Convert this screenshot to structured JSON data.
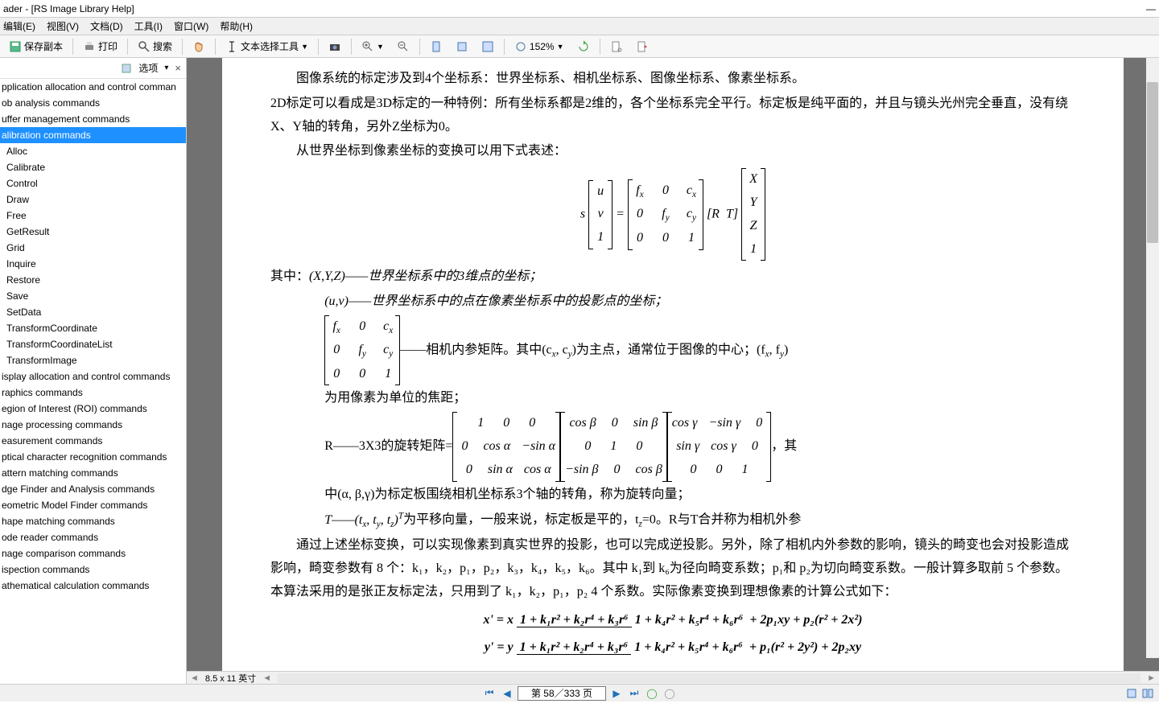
{
  "window": {
    "title": "ader - [RS Image Library Help]",
    "minimize": "—"
  },
  "menu": {
    "edit": "编辑(E)",
    "view": "视图(V)",
    "document": "文档(D)",
    "tools": "工具(I)",
    "window": "窗口(W)",
    "help": "帮助(H)"
  },
  "toolbar1": {
    "save": "保存副本",
    "print": "打印",
    "search": "搜索"
  },
  "toolbar2": {
    "textselect": "文本选择工具",
    "zoom": "152%"
  },
  "sidebar": {
    "options_label": "选项",
    "arrow": "▾",
    "close": "×",
    "items": [
      {
        "label": "pplication allocation and control comman",
        "sel": false,
        "child": false
      },
      {
        "label": "ob analysis commands",
        "sel": false,
        "child": false
      },
      {
        "label": "uffer management commands",
        "sel": false,
        "child": false
      },
      {
        "label": "alibration commands",
        "sel": true,
        "child": false
      },
      {
        "label": "Alloc",
        "sel": false,
        "child": true
      },
      {
        "label": "Calibrate",
        "sel": false,
        "child": true
      },
      {
        "label": "Control",
        "sel": false,
        "child": true
      },
      {
        "label": "Draw",
        "sel": false,
        "child": true
      },
      {
        "label": "Free",
        "sel": false,
        "child": true
      },
      {
        "label": "GetResult",
        "sel": false,
        "child": true
      },
      {
        "label": "Grid",
        "sel": false,
        "child": true
      },
      {
        "label": "Inquire",
        "sel": false,
        "child": true
      },
      {
        "label": "Restore",
        "sel": false,
        "child": true
      },
      {
        "label": "Save",
        "sel": false,
        "child": true
      },
      {
        "label": "SetData",
        "sel": false,
        "child": true
      },
      {
        "label": "TransformCoordinate",
        "sel": false,
        "child": true
      },
      {
        "label": "TransformCoordinateList",
        "sel": false,
        "child": true
      },
      {
        "label": "TransformImage",
        "sel": false,
        "child": true
      },
      {
        "label": "isplay allocation and control commands",
        "sel": false,
        "child": false
      },
      {
        "label": "raphics commands",
        "sel": false,
        "child": false
      },
      {
        "label": "egion of Interest (ROI) commands",
        "sel": false,
        "child": false
      },
      {
        "label": "nage processing commands",
        "sel": false,
        "child": false
      },
      {
        "label": "easurement commands",
        "sel": false,
        "child": false
      },
      {
        "label": "ptical character recognition commands",
        "sel": false,
        "child": false
      },
      {
        "label": "attern matching commands",
        "sel": false,
        "child": false
      },
      {
        "label": "dge Finder and Analysis commands",
        "sel": false,
        "child": false
      },
      {
        "label": "eometric Model Finder commands",
        "sel": false,
        "child": false
      },
      {
        "label": "hape matching commands",
        "sel": false,
        "child": false
      },
      {
        "label": "ode reader commands",
        "sel": false,
        "child": false
      },
      {
        "label": "nage comparison commands",
        "sel": false,
        "child": false
      },
      {
        "label": "ispection commands",
        "sel": false,
        "child": false
      },
      {
        "label": "athematical calculation commands",
        "sel": false,
        "child": false
      }
    ]
  },
  "doc": {
    "p1": "图像系统的标定涉及到4个坐标系：世界坐标系、相机坐标系、图像坐标系、像素坐标系。",
    "p2": "2D标定可以看成是3D标定的一种特例：所有坐标系都是2维的，各个坐标系完全平行。标定板是纯平面的，并且与镜头光州完全垂直，没有绕X、Y轴的转角，另外Z坐标为0。",
    "p3": "从世界坐标到像素坐标的变换可以用下式表述：",
    "where_label": "其中：",
    "xyz": "(X,Y,Z)——世界坐标系中的3维点的坐标；",
    "uv": "(u,v)——世界坐标系中的点在像素坐标系中的投影点的坐标；",
    "intrinsic_suffix": "——相机内参矩阵。其中(c",
    "intrinsic_suffix2": ", c",
    "intrinsic_suffix3": ")为主点，通常位于图像的中心；(f",
    "intrinsic_suffix4": ", f",
    "intrinsic_suffix5": ")",
    "focal": "为用像素为单位的焦距；",
    "r_prefix": "R——3X3的旋转矩阵=",
    "r_suffix": "，其",
    "r_suffix2_a": "中(α, β,γ)为标定板围绕相机坐标系3个轴的转角，称为旋转向量；",
    "t_line_a": "T——(t",
    "t_line_b": ", t",
    "t_line_c": ", t",
    "t_line_d": ")",
    "t_line_e": "为平移向量，一般来说，标定板是平的，t",
    "t_line_f": "=0。R与T合并称为相机外参",
    "p4": "通过上述坐标变换，可以实现像素到真实世界的投影，也可以完成逆投影。另外，除了相机内外参数的影响，镜头的畸变也会对投影造成影响，畸变参数有 8 个：k₁，k₂，p₁，p₂，k₃，k₄，k₅，k₆。其中 k₁到 k₆为径向畸变系数；p₁和 p₂为切向畸变系数。一般计算多取前 5 个参数。本算法采用的是张正友标定法，只用到了 k₁，k₂，p₁，p₂ 4 个系数。实际像素变换到理想像素的计算公式如下：",
    "eq_x_lhs": "x' = x",
    "eq_x_num": "1 + k₁r² + k₂r⁴ + k₃r⁶",
    "eq_x_den": "1 + k₄r² + k₅r⁴ + k₆r⁶",
    "eq_x_rhs": " + 2p₁xy + p₂(r² + 2x²)",
    "eq_y_lhs": "y' = y",
    "eq_y_num": "1 + k₁r² + k₂r⁴ + k₃r⁶",
    "eq_y_den": "1 + k₄r² + k₅r⁴ + k₆r⁶",
    "eq_y_rhs": " + p₁(r² + 2y²) + 2p₂xy"
  },
  "pagesize": "8.5 x 11 英寸",
  "pagestatus": "第 58／333 页"
}
